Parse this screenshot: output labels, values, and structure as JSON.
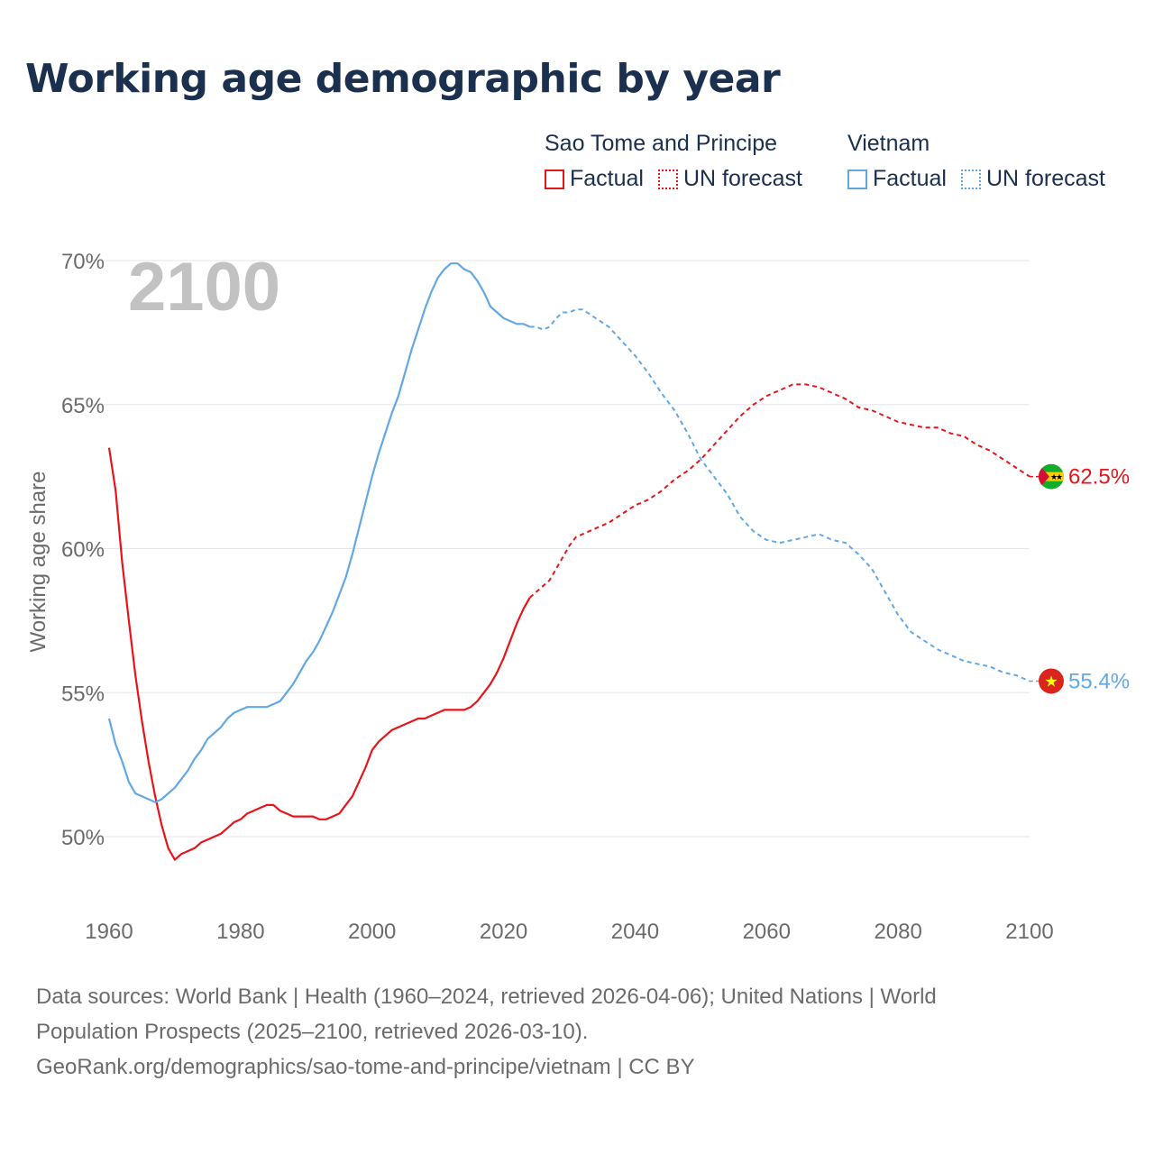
{
  "title": "Working age demographic by year",
  "legend": {
    "groups": [
      {
        "name": "Sao Tome and Principe",
        "color": "#e8141b",
        "items": [
          {
            "label": "Factual",
            "style": "solid"
          },
          {
            "label": "UN forecast",
            "style": "dotted"
          }
        ]
      },
      {
        "name": "Vietnam",
        "color": "#62a8e5",
        "items": [
          {
            "label": "Factual",
            "style": "solid"
          },
          {
            "label": "UN forecast",
            "style": "dotted"
          }
        ]
      }
    ]
  },
  "footer": {
    "line1": "Data sources: World Bank | Health (1960–2024, retrieved 2026-04-06); United Nations | World",
    "line2": "Population Prospects (2025–2100, retrieved 2026-03-10).",
    "line3": "GeoRank.org/demographics/sao-tome-and-principe/vietnam | CC BY"
  },
  "colors": {
    "stp": "#e8141b",
    "vn": "#62a8e5",
    "title": "#1b2f4e",
    "text": "#6b6b6b",
    "grid": "#e6e6e6",
    "year_watermark": "#c2c2c2"
  },
  "chart_data": {
    "type": "line",
    "title": "Working age demographic by year",
    "year_label": "2100",
    "xlabel": "",
    "ylabel": "Working age share",
    "xlim": [
      1960,
      2100
    ],
    "ylim": [
      48,
      71
    ],
    "x_ticks": [
      1960,
      1980,
      2000,
      2020,
      2040,
      2060,
      2080,
      2100
    ],
    "x_tick_labels": [
      "1960",
      "1980",
      "2000",
      "2020",
      "2040",
      "2060",
      "2080",
      "2100"
    ],
    "y_ticks": [
      50,
      55,
      60,
      65,
      70
    ],
    "y_tick_labels": [
      "50%",
      "55%",
      "60%",
      "65%",
      "70%"
    ],
    "grid": true,
    "forecast_start": 2024,
    "series": [
      {
        "name": "Sao Tome and Principe",
        "key": "stp",
        "end_label": "62.5%",
        "flag_icon": "sao-tome-flag-icon",
        "points": [
          [
            1960,
            63.5
          ],
          [
            1961,
            62.0
          ],
          [
            1962,
            59.5
          ],
          [
            1963,
            57.5
          ],
          [
            1964,
            55.6
          ],
          [
            1965,
            54.0
          ],
          [
            1966,
            52.6
          ],
          [
            1967,
            51.4
          ],
          [
            1968,
            50.4
          ],
          [
            1969,
            49.6
          ],
          [
            1970,
            49.2
          ],
          [
            1971,
            49.4
          ],
          [
            1972,
            49.5
          ],
          [
            1973,
            49.6
          ],
          [
            1974,
            49.8
          ],
          [
            1975,
            49.9
          ],
          [
            1976,
            50.0
          ],
          [
            1977,
            50.1
          ],
          [
            1978,
            50.3
          ],
          [
            1979,
            50.5
          ],
          [
            1980,
            50.6
          ],
          [
            1981,
            50.8
          ],
          [
            1982,
            50.9
          ],
          [
            1983,
            51.0
          ],
          [
            1984,
            51.1
          ],
          [
            1985,
            51.1
          ],
          [
            1986,
            50.9
          ],
          [
            1987,
            50.8
          ],
          [
            1988,
            50.7
          ],
          [
            1989,
            50.7
          ],
          [
            1990,
            50.7
          ],
          [
            1991,
            50.7
          ],
          [
            1992,
            50.6
          ],
          [
            1993,
            50.6
          ],
          [
            1994,
            50.7
          ],
          [
            1995,
            50.8
          ],
          [
            1996,
            51.1
          ],
          [
            1997,
            51.4
          ],
          [
            1998,
            51.9
          ],
          [
            1999,
            52.4
          ],
          [
            2000,
            53.0
          ],
          [
            2001,
            53.3
          ],
          [
            2002,
            53.5
          ],
          [
            2003,
            53.7
          ],
          [
            2004,
            53.8
          ],
          [
            2005,
            53.9
          ],
          [
            2006,
            54.0
          ],
          [
            2007,
            54.1
          ],
          [
            2008,
            54.1
          ],
          [
            2009,
            54.2
          ],
          [
            2010,
            54.3
          ],
          [
            2011,
            54.4
          ],
          [
            2012,
            54.4
          ],
          [
            2013,
            54.4
          ],
          [
            2014,
            54.4
          ],
          [
            2015,
            54.5
          ],
          [
            2016,
            54.7
          ],
          [
            2017,
            55.0
          ],
          [
            2018,
            55.3
          ],
          [
            2019,
            55.7
          ],
          [
            2020,
            56.2
          ],
          [
            2021,
            56.8
          ],
          [
            2022,
            57.4
          ],
          [
            2023,
            57.9
          ],
          [
            2024,
            58.3
          ],
          [
            2025,
            58.5
          ],
          [
            2026,
            58.7
          ],
          [
            2027,
            58.9
          ],
          [
            2028,
            59.3
          ],
          [
            2029,
            59.7
          ],
          [
            2030,
            60.1
          ],
          [
            2031,
            60.4
          ],
          [
            2032,
            60.5
          ],
          [
            2034,
            60.7
          ],
          [
            2036,
            60.9
          ],
          [
            2038,
            61.2
          ],
          [
            2040,
            61.5
          ],
          [
            2042,
            61.7
          ],
          [
            2044,
            62.0
          ],
          [
            2046,
            62.4
          ],
          [
            2048,
            62.7
          ],
          [
            2050,
            63.1
          ],
          [
            2052,
            63.6
          ],
          [
            2054,
            64.1
          ],
          [
            2056,
            64.6
          ],
          [
            2058,
            65.0
          ],
          [
            2060,
            65.3
          ],
          [
            2062,
            65.5
          ],
          [
            2064,
            65.7
          ],
          [
            2066,
            65.7
          ],
          [
            2068,
            65.6
          ],
          [
            2070,
            65.4
          ],
          [
            2072,
            65.2
          ],
          [
            2074,
            64.9
          ],
          [
            2076,
            64.8
          ],
          [
            2078,
            64.6
          ],
          [
            2080,
            64.4
          ],
          [
            2082,
            64.3
          ],
          [
            2084,
            64.2
          ],
          [
            2086,
            64.2
          ],
          [
            2088,
            64.0
          ],
          [
            2090,
            63.9
          ],
          [
            2092,
            63.6
          ],
          [
            2094,
            63.4
          ],
          [
            2096,
            63.1
          ],
          [
            2098,
            62.8
          ],
          [
            2100,
            62.5
          ]
        ]
      },
      {
        "name": "Vietnam",
        "key": "vn",
        "end_label": "55.4%",
        "flag_icon": "vietnam-flag-icon",
        "points": [
          [
            1960,
            54.1
          ],
          [
            1961,
            53.2
          ],
          [
            1962,
            52.6
          ],
          [
            1963,
            51.9
          ],
          [
            1964,
            51.5
          ],
          [
            1965,
            51.4
          ],
          [
            1966,
            51.3
          ],
          [
            1967,
            51.2
          ],
          [
            1968,
            51.3
          ],
          [
            1969,
            51.5
          ],
          [
            1970,
            51.7
          ],
          [
            1971,
            52.0
          ],
          [
            1972,
            52.3
          ],
          [
            1973,
            52.7
          ],
          [
            1974,
            53.0
          ],
          [
            1975,
            53.4
          ],
          [
            1976,
            53.6
          ],
          [
            1977,
            53.8
          ],
          [
            1978,
            54.1
          ],
          [
            1979,
            54.3
          ],
          [
            1980,
            54.4
          ],
          [
            1981,
            54.5
          ],
          [
            1982,
            54.5
          ],
          [
            1983,
            54.5
          ],
          [
            1984,
            54.5
          ],
          [
            1985,
            54.6
          ],
          [
            1986,
            54.7
          ],
          [
            1987,
            55.0
          ],
          [
            1988,
            55.3
          ],
          [
            1989,
            55.7
          ],
          [
            1990,
            56.1
          ],
          [
            1991,
            56.4
          ],
          [
            1992,
            56.8
          ],
          [
            1993,
            57.3
          ],
          [
            1994,
            57.8
          ],
          [
            1995,
            58.4
          ],
          [
            1996,
            59.0
          ],
          [
            1997,
            59.8
          ],
          [
            1998,
            60.7
          ],
          [
            1999,
            61.6
          ],
          [
            2000,
            62.5
          ],
          [
            2001,
            63.3
          ],
          [
            2002,
            64.0
          ],
          [
            2003,
            64.7
          ],
          [
            2004,
            65.3
          ],
          [
            2005,
            66.1
          ],
          [
            2006,
            66.9
          ],
          [
            2007,
            67.6
          ],
          [
            2008,
            68.3
          ],
          [
            2009,
            68.9
          ],
          [
            2010,
            69.4
          ],
          [
            2011,
            69.7
          ],
          [
            2012,
            69.9
          ],
          [
            2013,
            69.9
          ],
          [
            2014,
            69.7
          ],
          [
            2015,
            69.6
          ],
          [
            2016,
            69.3
          ],
          [
            2017,
            68.9
          ],
          [
            2018,
            68.4
          ],
          [
            2019,
            68.2
          ],
          [
            2020,
            68.0
          ],
          [
            2021,
            67.9
          ],
          [
            2022,
            67.8
          ],
          [
            2023,
            67.8
          ],
          [
            2024,
            67.7
          ],
          [
            2025,
            67.7
          ],
          [
            2026,
            67.6
          ],
          [
            2027,
            67.7
          ],
          [
            2028,
            68.0
          ],
          [
            2029,
            68.2
          ],
          [
            2030,
            68.2
          ],
          [
            2031,
            68.3
          ],
          [
            2032,
            68.3
          ],
          [
            2034,
            68.0
          ],
          [
            2036,
            67.7
          ],
          [
            2038,
            67.2
          ],
          [
            2040,
            66.7
          ],
          [
            2042,
            66.1
          ],
          [
            2044,
            65.4
          ],
          [
            2046,
            64.8
          ],
          [
            2048,
            64.0
          ],
          [
            2050,
            63.1
          ],
          [
            2052,
            62.5
          ],
          [
            2054,
            61.9
          ],
          [
            2056,
            61.1
          ],
          [
            2058,
            60.6
          ],
          [
            2060,
            60.3
          ],
          [
            2062,
            60.2
          ],
          [
            2064,
            60.3
          ],
          [
            2066,
            60.4
          ],
          [
            2068,
            60.5
          ],
          [
            2070,
            60.3
          ],
          [
            2072,
            60.2
          ],
          [
            2074,
            59.8
          ],
          [
            2076,
            59.3
          ],
          [
            2078,
            58.5
          ],
          [
            2080,
            57.7
          ],
          [
            2082,
            57.1
          ],
          [
            2084,
            56.8
          ],
          [
            2086,
            56.5
          ],
          [
            2088,
            56.3
          ],
          [
            2090,
            56.1
          ],
          [
            2092,
            56.0
          ],
          [
            2094,
            55.9
          ],
          [
            2096,
            55.7
          ],
          [
            2098,
            55.6
          ],
          [
            2100,
            55.4
          ]
        ]
      }
    ]
  }
}
